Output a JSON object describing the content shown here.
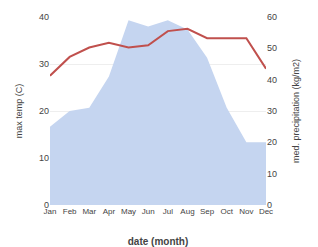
{
  "chart_data": {
    "type": "line",
    "categories": [
      "Jan",
      "Feb",
      "Mar",
      "Apr",
      "May",
      "Jun",
      "Jul",
      "Aug",
      "Sep",
      "Oct",
      "Nov",
      "Dec"
    ],
    "xlabel": "date (month)",
    "ylabel": "max temp (C)",
    "y2label": "med. precipitation (kg/m2)",
    "series": [
      {
        "type": "area",
        "axis": "y2",
        "color": "#c5d5f0",
        "values": [
          25,
          30,
          31,
          41,
          59,
          57,
          59,
          56,
          47,
          31,
          20,
          20
        ]
      },
      {
        "type": "line",
        "color": "#c0504d",
        "values": [
          27.5,
          31.5,
          33.5,
          34.5,
          33.5,
          34.0,
          37.0,
          37.5,
          35.5,
          35.5,
          35.5,
          29.0
        ]
      }
    ],
    "ylim": [
      0,
      40
    ],
    "yticks": [
      0,
      10,
      20,
      30,
      40
    ],
    "y2lim": [
      0,
      60
    ],
    "y2ticks": [
      0,
      10,
      20,
      30,
      40,
      50,
      60
    ],
    "grid": true
  }
}
